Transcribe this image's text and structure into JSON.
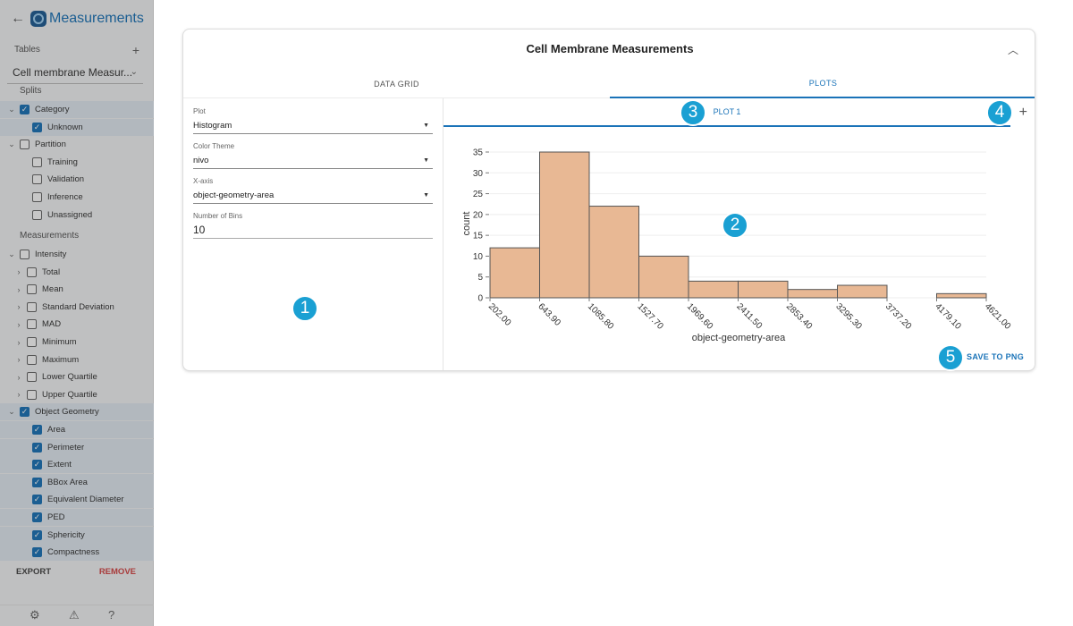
{
  "sidebar": {
    "title": "Measurements",
    "tables_label": "Tables",
    "table_select": "Cell membrane Measur...",
    "splits_label": "Splits",
    "measurements_label": "Measurements",
    "tree": [
      {
        "label": "Category",
        "arrow": "⌄",
        "checked": true,
        "indent": 0,
        "highlight": true
      },
      {
        "label": "Unknown",
        "arrow": "",
        "checked": true,
        "indent": 1,
        "highlight": true
      },
      {
        "label": "Partition",
        "arrow": "⌄",
        "checked": false,
        "indent": 0,
        "highlight": false
      },
      {
        "label": "Training",
        "arrow": "",
        "checked": false,
        "indent": 1,
        "highlight": false
      },
      {
        "label": "Validation",
        "arrow": "",
        "checked": false,
        "indent": 1,
        "highlight": false
      },
      {
        "label": "Inference",
        "arrow": "",
        "checked": false,
        "indent": 1,
        "highlight": false
      },
      {
        "label": "Unassigned",
        "arrow": "",
        "checked": false,
        "indent": 1,
        "highlight": false
      }
    ],
    "meas_tree": [
      {
        "label": "Intensity",
        "arrow": "⌄",
        "checked": false,
        "indent": 0,
        "highlight": false
      },
      {
        "label": "Total",
        "arrow": "›",
        "checked": false,
        "indent": 1,
        "highlight": false
      },
      {
        "label": "Mean",
        "arrow": "›",
        "checked": false,
        "indent": 1,
        "highlight": false
      },
      {
        "label": "Standard Deviation",
        "arrow": "›",
        "checked": false,
        "indent": 1,
        "highlight": false
      },
      {
        "label": "MAD",
        "arrow": "›",
        "checked": false,
        "indent": 1,
        "highlight": false
      },
      {
        "label": "Minimum",
        "arrow": "›",
        "checked": false,
        "indent": 1,
        "highlight": false
      },
      {
        "label": "Maximum",
        "arrow": "›",
        "checked": false,
        "indent": 1,
        "highlight": false
      },
      {
        "label": "Lower Quartile",
        "arrow": "›",
        "checked": false,
        "indent": 1,
        "highlight": false
      },
      {
        "label": "Upper Quartile",
        "arrow": "›",
        "checked": false,
        "indent": 1,
        "highlight": false
      },
      {
        "label": "Object Geometry",
        "arrow": "⌄",
        "checked": true,
        "indent": 0,
        "highlight": true
      },
      {
        "label": "Area",
        "arrow": "",
        "checked": true,
        "indent": 1,
        "highlight": true
      },
      {
        "label": "Perimeter",
        "arrow": "",
        "checked": true,
        "indent": 1,
        "highlight": true
      },
      {
        "label": "Extent",
        "arrow": "",
        "checked": true,
        "indent": 1,
        "highlight": true
      },
      {
        "label": "BBox Area",
        "arrow": "",
        "checked": true,
        "indent": 1,
        "highlight": true
      },
      {
        "label": "Equivalent Diameter",
        "arrow": "",
        "checked": true,
        "indent": 1,
        "highlight": true
      },
      {
        "label": "PED",
        "arrow": "",
        "checked": true,
        "indent": 1,
        "highlight": true
      },
      {
        "label": "Sphericity",
        "arrow": "",
        "checked": true,
        "indent": 1,
        "highlight": true
      },
      {
        "label": "Compactness",
        "arrow": "",
        "checked": true,
        "indent": 1,
        "highlight": true
      }
    ],
    "export_label": "EXPORT",
    "remove_label": "REMOVE"
  },
  "card": {
    "title": "Cell Membrane Measurements",
    "tabs": [
      "DATA GRID",
      "PLOTS"
    ],
    "active_tab": 1,
    "fields": {
      "plot_label": "Plot",
      "plot_value": "Histogram",
      "color_label": "Color Theme",
      "color_value": "nivo",
      "xaxis_label": "X-axis",
      "xaxis_value": "object-geometry-area",
      "bins_label": "Number of Bins",
      "bins_value": "10"
    },
    "plot_tab": "PLOT 1",
    "save_label": "SAVE TO PNG"
  },
  "badges": [
    "1",
    "2",
    "3",
    "4",
    "5"
  ],
  "colors": {
    "accent": "#1a73b8",
    "bar_fill": "#e8b894",
    "bar_stroke": "#555555",
    "badge": "#1aa0d3"
  },
  "chart_data": {
    "type": "bar",
    "categories": [
      "202.00",
      "643.90",
      "1085.80",
      "1527.70",
      "1969.60",
      "2411.50",
      "2853.40",
      "3295.30",
      "3737.20",
      "4179.10"
    ],
    "tick_labels": [
      "202.00",
      "643.90",
      "1085.80",
      "1527.70",
      "1969.60",
      "2411.50",
      "2853.40",
      "3295.30",
      "3737.20",
      "4179.10",
      "4621.00"
    ],
    "values": [
      12,
      35,
      22,
      10,
      4,
      4,
      2,
      3,
      0,
      1
    ],
    "xlabel": "object-geometry-area",
    "ylabel": "count",
    "ylim": [
      0,
      35
    ],
    "yticks": [
      0,
      5,
      10,
      15,
      20,
      25,
      30,
      35
    ],
    "grid": true
  }
}
